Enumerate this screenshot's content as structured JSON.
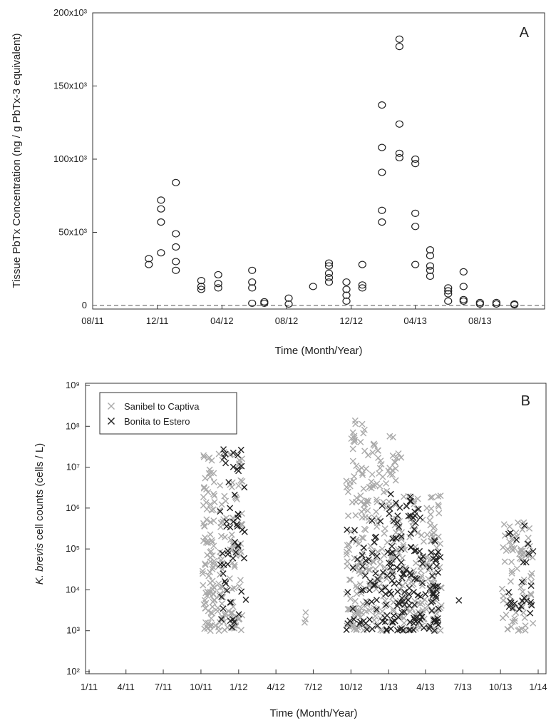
{
  "chart_data": [
    {
      "type": "scatter",
      "panel_label": "A",
      "xlabel": "Time (Month/Year)",
      "ylabel": "Tissue PbTx Concentration (ng / g PbTx-3 equivalent)",
      "x_tick_labels": [
        "08/11",
        "12/11",
        "04/12",
        "08/12",
        "12/12",
        "04/13",
        "08/13"
      ],
      "x_range": [
        "2011-08",
        "2013-12"
      ],
      "y_tick_labels": [
        "0",
        "50x10³",
        "100x10³",
        "150x10³",
        "200x10³"
      ],
      "ylim": [
        0,
        200000
      ],
      "grid": false,
      "reference_line": {
        "style": "dashed",
        "y": 0
      },
      "marker": "open-circle",
      "series": [
        {
          "points": [
            {
              "x": "2011-11-15",
              "y": 28000
            },
            {
              "x": "2011-11-15",
              "y": 32000
            },
            {
              "x": "2011-12-08",
              "y": 36000
            },
            {
              "x": "2011-12-08",
              "y": 57000
            },
            {
              "x": "2011-12-08",
              "y": 66000
            },
            {
              "x": "2011-12-08",
              "y": 72000
            },
            {
              "x": "2012-01-05",
              "y": 24000
            },
            {
              "x": "2012-01-05",
              "y": 30000
            },
            {
              "x": "2012-01-05",
              "y": 40000
            },
            {
              "x": "2012-01-05",
              "y": 49000
            },
            {
              "x": "2012-01-05",
              "y": 84000
            },
            {
              "x": "2012-02-22",
              "y": 11000
            },
            {
              "x": "2012-02-22",
              "y": 13000
            },
            {
              "x": "2012-02-22",
              "y": 17000
            },
            {
              "x": "2012-03-25",
              "y": 12000
            },
            {
              "x": "2012-03-25",
              "y": 15000
            },
            {
              "x": "2012-03-25",
              "y": 21000
            },
            {
              "x": "2012-05-28",
              "y": 1500
            },
            {
              "x": "2012-05-28",
              "y": 12000
            },
            {
              "x": "2012-05-28",
              "y": 16000
            },
            {
              "x": "2012-05-28",
              "y": 24000
            },
            {
              "x": "2012-06-20",
              "y": 1500
            },
            {
              "x": "2012-06-20",
              "y": 2500
            },
            {
              "x": "2012-08-05",
              "y": 1000
            },
            {
              "x": "2012-08-05",
              "y": 5000
            },
            {
              "x": "2012-09-20",
              "y": 13000
            },
            {
              "x": "2012-10-20",
              "y": 16000
            },
            {
              "x": "2012-10-20",
              "y": 19000
            },
            {
              "x": "2012-10-20",
              "y": 22000
            },
            {
              "x": "2012-10-20",
              "y": 27000
            },
            {
              "x": "2012-10-20",
              "y": 29000
            },
            {
              "x": "2012-11-22",
              "y": 3000
            },
            {
              "x": "2012-11-22",
              "y": 7000
            },
            {
              "x": "2012-11-22",
              "y": 11000
            },
            {
              "x": "2012-11-22",
              "y": 16000
            },
            {
              "x": "2012-12-22",
              "y": 12000
            },
            {
              "x": "2012-12-22",
              "y": 14000
            },
            {
              "x": "2012-12-22",
              "y": 28000
            },
            {
              "x": "2013-01-28",
              "y": 57000
            },
            {
              "x": "2013-01-28",
              "y": 65000
            },
            {
              "x": "2013-01-28",
              "y": 91000
            },
            {
              "x": "2013-01-28",
              "y": 108000
            },
            {
              "x": "2013-01-28",
              "y": 137000
            },
            {
              "x": "2013-03-02",
              "y": 101000
            },
            {
              "x": "2013-03-02",
              "y": 104000
            },
            {
              "x": "2013-03-02",
              "y": 124000
            },
            {
              "x": "2013-03-02",
              "y": 177000
            },
            {
              "x": "2013-03-02",
              "y": 182000
            },
            {
              "x": "2013-04-01",
              "y": 28000
            },
            {
              "x": "2013-04-01",
              "y": 54000
            },
            {
              "x": "2013-04-01",
              "y": 63000
            },
            {
              "x": "2013-04-01",
              "y": 97000
            },
            {
              "x": "2013-04-01",
              "y": 100000
            },
            {
              "x": "2013-04-29",
              "y": 20000
            },
            {
              "x": "2013-04-29",
              "y": 24000
            },
            {
              "x": "2013-04-29",
              "y": 27000
            },
            {
              "x": "2013-04-29",
              "y": 34000
            },
            {
              "x": "2013-04-29",
              "y": 38000
            },
            {
              "x": "2013-06-02",
              "y": 3000
            },
            {
              "x": "2013-06-02",
              "y": 8000
            },
            {
              "x": "2013-06-02",
              "y": 10000
            },
            {
              "x": "2013-06-02",
              "y": 12000
            },
            {
              "x": "2013-07-01",
              "y": 3000
            },
            {
              "x": "2013-07-01",
              "y": 4000
            },
            {
              "x": "2013-07-01",
              "y": 13000
            },
            {
              "x": "2013-07-01",
              "y": 23000
            },
            {
              "x": "2013-08-01",
              "y": 1000
            },
            {
              "x": "2013-08-01",
              "y": 2000
            },
            {
              "x": "2013-09-01",
              "y": 1000
            },
            {
              "x": "2013-09-01",
              "y": 2000
            },
            {
              "x": "2013-10-05",
              "y": 500
            },
            {
              "x": "2013-10-05",
              "y": 1000
            }
          ]
        }
      ]
    },
    {
      "type": "scatter",
      "panel_label": "B",
      "xlabel": "Time (Month/Year)",
      "ylabel_italic": "K. brevis",
      "ylabel_rest": " cell counts (cells / L)",
      "x_tick_labels": [
        "1/11",
        "4/11",
        "7/11",
        "10/11",
        "1/12",
        "4/12",
        "7/12",
        "10/12",
        "1/13",
        "4/13",
        "7/13",
        "10/13",
        "1/14"
      ],
      "x_range": [
        "2011-01",
        "2014-01"
      ],
      "y_tick_labels": [
        "10²",
        "10³",
        "10⁴",
        "10⁵",
        "10⁶",
        "10⁷",
        "10⁸",
        "10⁹"
      ],
      "y_scale": "log",
      "ylim": [
        100,
        1000000000
      ],
      "grid": false,
      "marker": "x",
      "legend": {
        "position": "top-left"
      },
      "series": [
        {
          "name": "Sanibel to Captiva",
          "color": "#a9a9a9",
          "clusters": [
            {
              "x_start": "2011-10-05",
              "x_end": "2011-11-05",
              "y_min": 1000,
              "y_max": 20000000,
              "n": 95
            },
            {
              "x_start": "2011-11-10",
              "x_end": "2012-01-10",
              "y_min": 1000,
              "y_max": 25000000,
              "n": 110
            },
            {
              "x_start": "2012-06-10",
              "x_end": "2012-06-30",
              "y_min": 1500,
              "y_max": 80000,
              "n": 3
            },
            {
              "x_start": "2012-09-20",
              "x_end": "2012-11-20",
              "y_min": 1000,
              "y_max": 150000000,
              "n": 140
            },
            {
              "x_start": "2012-11-20",
              "x_end": "2013-02-01",
              "y_min": 1000,
              "y_max": 60000000,
              "n": 120
            },
            {
              "x_start": "2013-02-01",
              "x_end": "2013-05-10",
              "y_min": 1000,
              "y_max": 2000000,
              "n": 150
            },
            {
              "x_start": "2013-10-05",
              "x_end": "2013-12-20",
              "y_min": 1000,
              "y_max": 600000,
              "n": 80
            }
          ]
        },
        {
          "name": "Bonita to Estero",
          "color": "#222222",
          "clusters": [
            {
              "x_start": "2011-11-15",
              "x_end": "2012-01-20",
              "y_min": 1200,
              "y_max": 30000000,
              "n": 55
            },
            {
              "x_start": "2012-09-20",
              "x_end": "2012-12-15",
              "y_min": 1000,
              "y_max": 600000,
              "n": 45
            },
            {
              "x_start": "2012-12-15",
              "x_end": "2013-03-20",
              "y_min": 1000,
              "y_max": 2500000,
              "n": 110
            },
            {
              "x_start": "2013-03-20",
              "x_end": "2013-05-10",
              "y_min": 1000,
              "y_max": 300000,
              "n": 45
            },
            {
              "x_start": "2013-06-20",
              "x_end": "2013-06-25",
              "y_min": 5500,
              "y_max": 5500,
              "n": 1
            },
            {
              "x_start": "2013-10-20",
              "x_end": "2013-12-20",
              "y_min": 2500,
              "y_max": 600000,
              "n": 25
            }
          ]
        }
      ]
    }
  ]
}
